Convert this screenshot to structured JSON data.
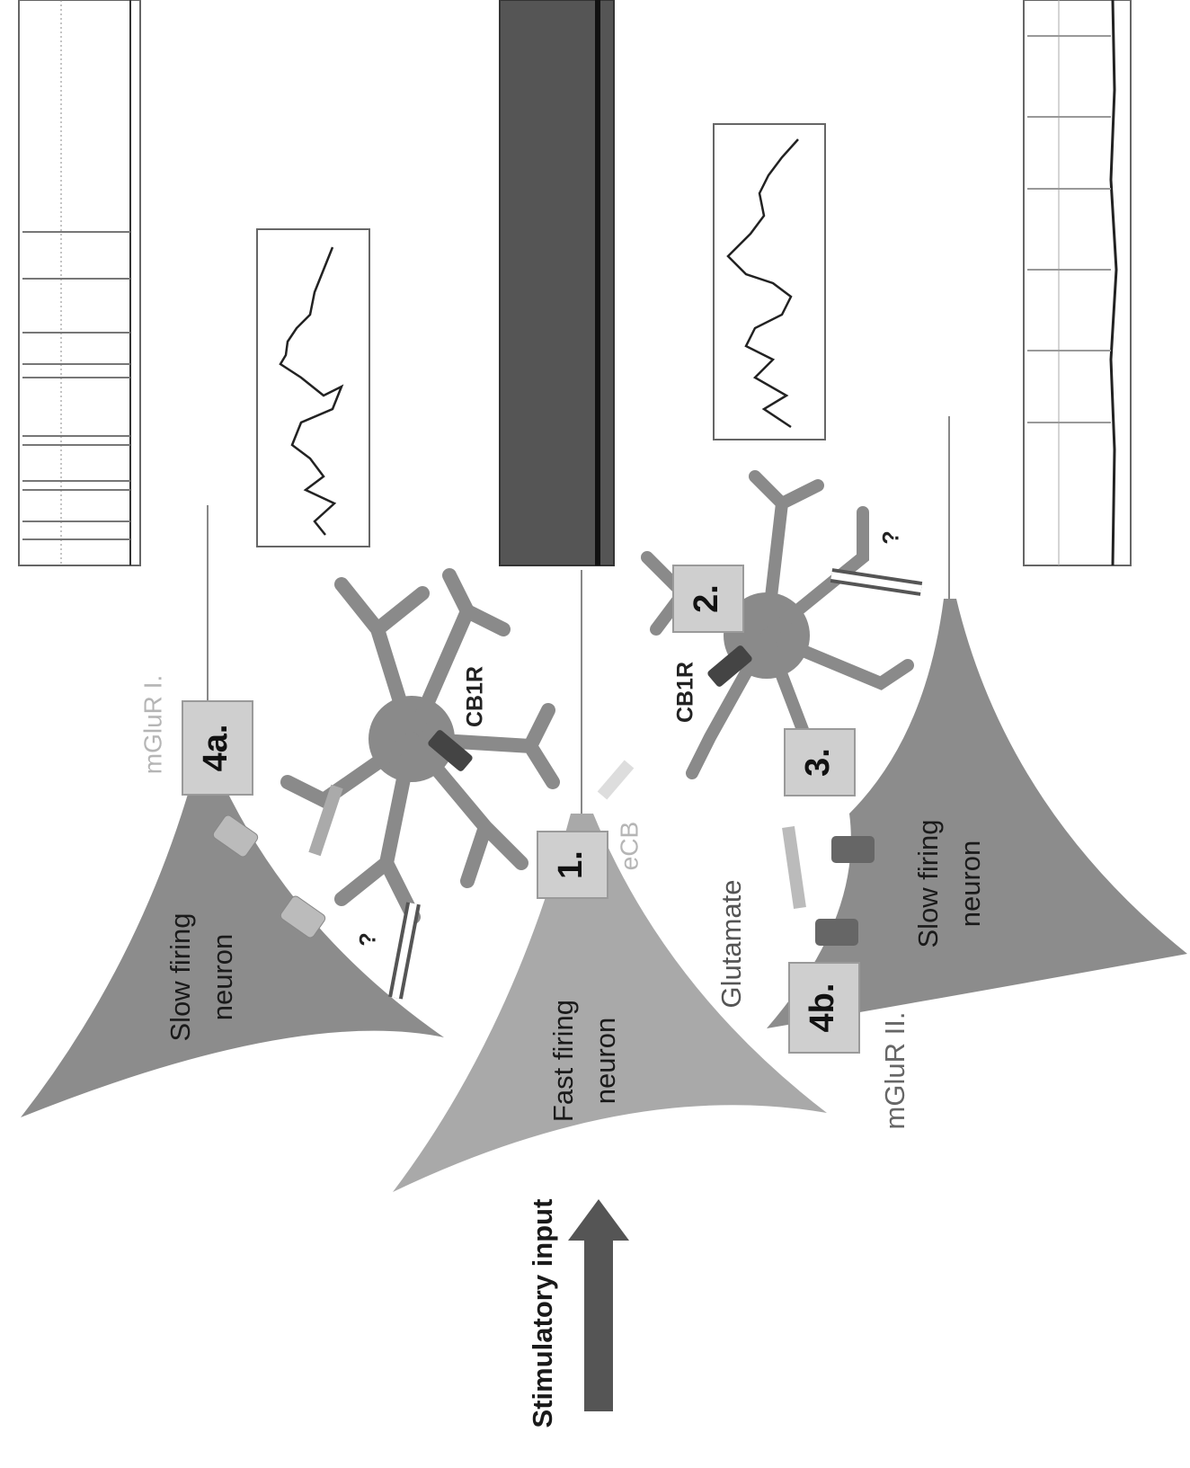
{
  "neurons": [
    {
      "lines": [
        "Slow firing",
        "neuron"
      ]
    },
    {
      "lines": [
        "Fast firing",
        "neuron"
      ]
    },
    {
      "lines": [
        "Slow firing",
        "neuron"
      ]
    }
  ],
  "steps": [
    "4a.",
    "1.",
    "2.",
    "3.",
    "4b."
  ],
  "receptors": {
    "mglur_one": "mGluR I.",
    "mglur_two": "mGluR II.",
    "cb1r_upper": "CB1R",
    "cb1r_lower": "CB1R"
  },
  "messengers": {
    "ecb": "eCB",
    "glutamate": "Glutamate"
  },
  "unknowns": [
    "?",
    "?"
  ],
  "input": "Stimulatory input"
}
